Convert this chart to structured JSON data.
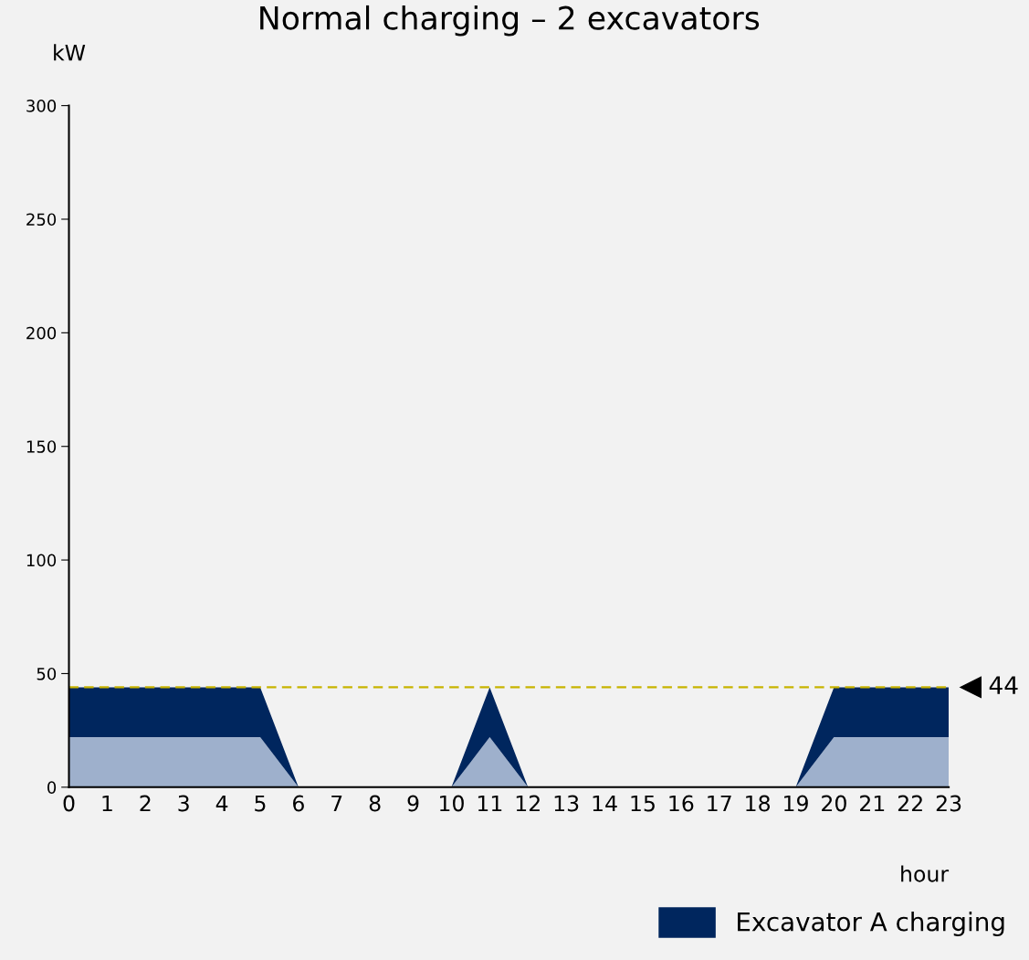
{
  "chart_data": {
    "type": "area",
    "title": "Normal charging – 2 excavators",
    "xlabel": "hour",
    "ylabel": "kW",
    "x": [
      0,
      1,
      2,
      3,
      4,
      5,
      6,
      7,
      8,
      9,
      10,
      11,
      12,
      13,
      14,
      15,
      16,
      17,
      18,
      19,
      20,
      21,
      22,
      23
    ],
    "stacked": true,
    "series": [
      {
        "color": "#9eb0cc",
        "values": [
          22,
          22,
          22,
          22,
          22,
          22,
          0,
          0,
          0,
          0,
          0,
          22,
          0,
          0,
          0,
          0,
          0,
          0,
          0,
          0,
          22,
          22,
          22,
          22
        ]
      },
      {
        "name": "Excavator A charging",
        "color": "#00265e",
        "values": [
          22,
          22,
          22,
          22,
          22,
          22,
          0,
          0,
          0,
          0,
          0,
          22,
          0,
          0,
          0,
          0,
          0,
          0,
          0,
          0,
          22,
          22,
          22,
          22
        ]
      }
    ],
    "xlim": [
      0,
      23
    ],
    "xticks": [
      0,
      1,
      2,
      3,
      4,
      5,
      6,
      7,
      8,
      9,
      10,
      11,
      12,
      13,
      14,
      15,
      16,
      17,
      18,
      19,
      20,
      21,
      22,
      23
    ],
    "ylim": [
      0,
      300
    ],
    "yticks": [
      0,
      50,
      100,
      150,
      200,
      250,
      300
    ],
    "ref_lines": [
      {
        "axis": "y",
        "value": 44,
        "label": "44",
        "color": "#c8b400",
        "line_style": "dashed"
      }
    ],
    "grid": false,
    "legend": "bottom right"
  }
}
